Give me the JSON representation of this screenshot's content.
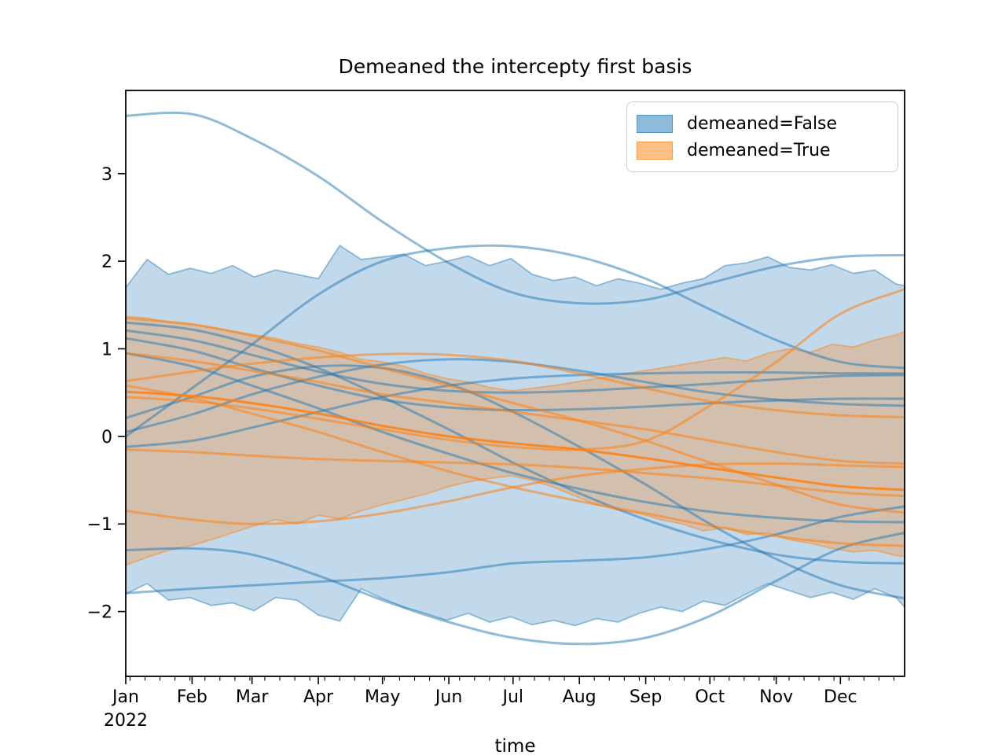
{
  "title": "Demeaned the intercepty first basis",
  "legend": {
    "entries": [
      {
        "label": "demeaned=False",
        "color": "#1f77b4"
      },
      {
        "label": "demeaned=True",
        "color": "#ff7f0e"
      }
    ]
  },
  "chart_data": {
    "type": "line",
    "title": "Demeaned the intercepty first basis",
    "xlabel": "time",
    "ylabel": "",
    "x_year_label": "2022",
    "x_tick_labels": [
      "Jan",
      "Feb",
      "Mar",
      "Apr",
      "May",
      "Jun",
      "Jul",
      "Aug",
      "Sep",
      "Oct",
      "Nov",
      "Dec"
    ],
    "month_start_days": [
      0,
      31,
      59,
      90,
      120,
      151,
      181,
      212,
      243,
      273,
      304,
      334
    ],
    "minor_tick_days_step": 7,
    "minor_tick_first_day": 2,
    "y_ticks": [
      3,
      2,
      1,
      0,
      -1,
      -2
    ],
    "xlim_days": [
      0,
      364
    ],
    "ylim": [
      -2.74,
      3.95
    ],
    "grid": false,
    "legend_position": "upper right",
    "series_sample_days": [
      0,
      31,
      59,
      90,
      120,
      151,
      181,
      212,
      243,
      273,
      304,
      334,
      364
    ],
    "band_sample_days": [
      0,
      10,
      20,
      30,
      40,
      50,
      60,
      70,
      80,
      90,
      100,
      110,
      120,
      130,
      140,
      150,
      160,
      170,
      180,
      190,
      200,
      210,
      220,
      230,
      240,
      250,
      260,
      270,
      280,
      290,
      300,
      310,
      320,
      330,
      340,
      350,
      360,
      364
    ],
    "groups": [
      {
        "name": "demeaned=False",
        "color": "#1f77b4",
        "band": {
          "upper": [
            1.7,
            2.02,
            1.85,
            1.92,
            1.86,
            1.95,
            1.82,
            1.9,
            1.85,
            1.8,
            2.18,
            2.02,
            2.05,
            2.08,
            1.95,
            2.0,
            2.06,
            1.95,
            2.03,
            1.85,
            1.78,
            1.82,
            1.72,
            1.8,
            1.75,
            1.68,
            1.75,
            1.8,
            1.95,
            1.98,
            2.05,
            1.93,
            1.9,
            1.96,
            1.86,
            1.9,
            1.74,
            1.72
          ],
          "lower": [
            -1.8,
            -1.68,
            -1.87,
            -1.84,
            -1.93,
            -1.9,
            -1.99,
            -1.84,
            -1.87,
            -2.04,
            -2.11,
            -1.74,
            -1.85,
            -1.95,
            -2.02,
            -2.1,
            -2.02,
            -2.12,
            -2.06,
            -2.15,
            -2.1,
            -2.16,
            -2.08,
            -2.12,
            -2.02,
            -1.95,
            -2.0,
            -1.88,
            -1.93,
            -1.8,
            -1.68,
            -1.76,
            -1.84,
            -1.78,
            -1.86,
            -1.74,
            -1.84,
            -1.95
          ]
        },
        "lines": [
          {
            "values": [
              3.66,
              3.68,
              3.4,
              2.97,
              2.45,
              1.98,
              1.64,
              1.52,
              1.56,
              1.75,
              1.94,
              2.05,
              2.07
            ]
          },
          {
            "values": [
              0.0,
              0.55,
              1.05,
              1.62,
              2.0,
              2.15,
              2.17,
              2.05,
              1.8,
              1.45,
              1.1,
              0.85,
              0.78
            ]
          },
          {
            "values": [
              1.3,
              1.22,
              1.05,
              0.78,
              0.45,
              0.08,
              -0.3,
              -0.65,
              -0.95,
              -1.18,
              -1.35,
              -1.43,
              -1.45
            ]
          },
          {
            "values": [
              1.21,
              1.1,
              0.93,
              0.74,
              0.6,
              0.52,
              0.5,
              0.52,
              0.56,
              0.6,
              0.65,
              0.69,
              0.7
            ]
          },
          {
            "values": [
              1.12,
              0.98,
              0.78,
              0.58,
              0.42,
              0.33,
              0.3,
              0.31,
              0.34,
              0.38,
              0.41,
              0.43,
              0.43
            ]
          },
          {
            "values": [
              0.95,
              0.8,
              0.58,
              0.32,
              0.05,
              -0.2,
              -0.42,
              -0.6,
              -0.75,
              -0.86,
              -0.93,
              -0.97,
              -0.98
            ]
          },
          {
            "values": [
              0.21,
              0.45,
              0.68,
              0.8,
              0.78,
              0.6,
              0.28,
              -0.12,
              -0.55,
              -1.0,
              -1.4,
              -1.7,
              -1.85
            ]
          },
          {
            "values": [
              0.05,
              0.25,
              0.48,
              0.68,
              0.82,
              0.88,
              0.85,
              0.75,
              0.62,
              0.5,
              0.42,
              0.37,
              0.35
            ]
          },
          {
            "values": [
              -0.12,
              -0.05,
              0.1,
              0.28,
              0.45,
              0.58,
              0.66,
              0.7,
              0.72,
              0.73,
              0.73,
              0.72,
              0.72
            ]
          },
          {
            "values": [
              -1.3,
              -1.28,
              -1.35,
              -1.59,
              -1.87,
              -2.12,
              -2.3,
              -2.37,
              -2.3,
              -2.05,
              -1.65,
              -1.28,
              -1.1
            ]
          },
          {
            "values": [
              -1.79,
              -1.74,
              -1.7,
              -1.66,
              -1.62,
              -1.55,
              -1.45,
              -1.42,
              -1.38,
              -1.28,
              -1.12,
              -0.92,
              -0.8
            ]
          }
        ]
      },
      {
        "name": "demeaned=True",
        "color": "#ff7f0e",
        "band": {
          "upper": [
            1.37,
            1.35,
            1.3,
            1.28,
            1.24,
            1.2,
            1.16,
            1.12,
            1.06,
            1.02,
            0.96,
            0.88,
            0.85,
            0.8,
            0.72,
            0.66,
            0.62,
            0.56,
            0.52,
            0.55,
            0.58,
            0.62,
            0.66,
            0.7,
            0.74,
            0.78,
            0.82,
            0.86,
            0.9,
            0.86,
            0.95,
            1.0,
            0.96,
            1.05,
            1.02,
            1.1,
            1.16,
            1.2
          ],
          "lower": [
            -1.47,
            -1.38,
            -1.3,
            -1.25,
            -1.18,
            -1.1,
            -1.02,
            -0.95,
            -1.0,
            -0.9,
            -0.94,
            -0.85,
            -0.78,
            -0.72,
            -0.66,
            -0.58,
            -0.52,
            -0.48,
            -0.45,
            -0.5,
            -0.58,
            -0.68,
            -0.78,
            -0.84,
            -0.88,
            -0.95,
            -1.0,
            -1.08,
            -1.04,
            -1.12,
            -1.1,
            -1.18,
            -1.22,
            -1.28,
            -1.32,
            -1.3,
            -1.36,
            -1.37
          ]
        },
        "lines": [
          {
            "values": [
              0.45,
              0.4,
              0.32,
              0.2,
              0.08,
              -0.04,
              -0.12,
              -0.15,
              -0.05,
              0.35,
              0.85,
              1.4,
              1.68
            ]
          },
          {
            "values": [
              0.63,
              0.74,
              0.83,
              0.9,
              0.94,
              0.93,
              0.86,
              0.72,
              0.55,
              0.4,
              0.3,
              0.24,
              0.22
            ]
          },
          {
            "values": [
              0.95,
              0.86,
              0.75,
              0.62,
              0.48,
              0.38,
              0.28,
              0.18,
              0.08,
              -0.05,
              -0.18,
              -0.28,
              -0.31
            ]
          },
          {
            "values": [
              0.51,
              0.46,
              0.38,
              0.26,
              0.12,
              0.0,
              -0.08,
              -0.15,
              -0.25,
              -0.36,
              -0.47,
              -0.57,
              -0.61
            ],
            "alpha": 0.85
          },
          {
            "values": [
              1.35,
              1.28,
              1.15,
              0.98,
              0.78,
              0.58,
              0.38,
              0.18,
              -0.05,
              -0.3,
              -0.55,
              -0.78,
              -0.87
            ]
          },
          {
            "values": [
              0.58,
              0.44,
              0.26,
              0.05,
              -0.18,
              -0.4,
              -0.58,
              -0.74,
              -0.88,
              -1.02,
              -1.14,
              -1.22,
              -1.25
            ]
          },
          {
            "values": [
              -0.85,
              -0.95,
              -1.0,
              -0.97,
              -0.88,
              -0.74,
              -0.58,
              -0.45,
              -0.37,
              -0.32,
              -0.31,
              -0.33,
              -0.35
            ]
          },
          {
            "values": [
              -0.15,
              -0.18,
              -0.22,
              -0.26,
              -0.28,
              -0.3,
              -0.32,
              -0.36,
              -0.42,
              -0.48,
              -0.56,
              -0.64,
              -0.68
            ]
          }
        ]
      }
    ]
  }
}
